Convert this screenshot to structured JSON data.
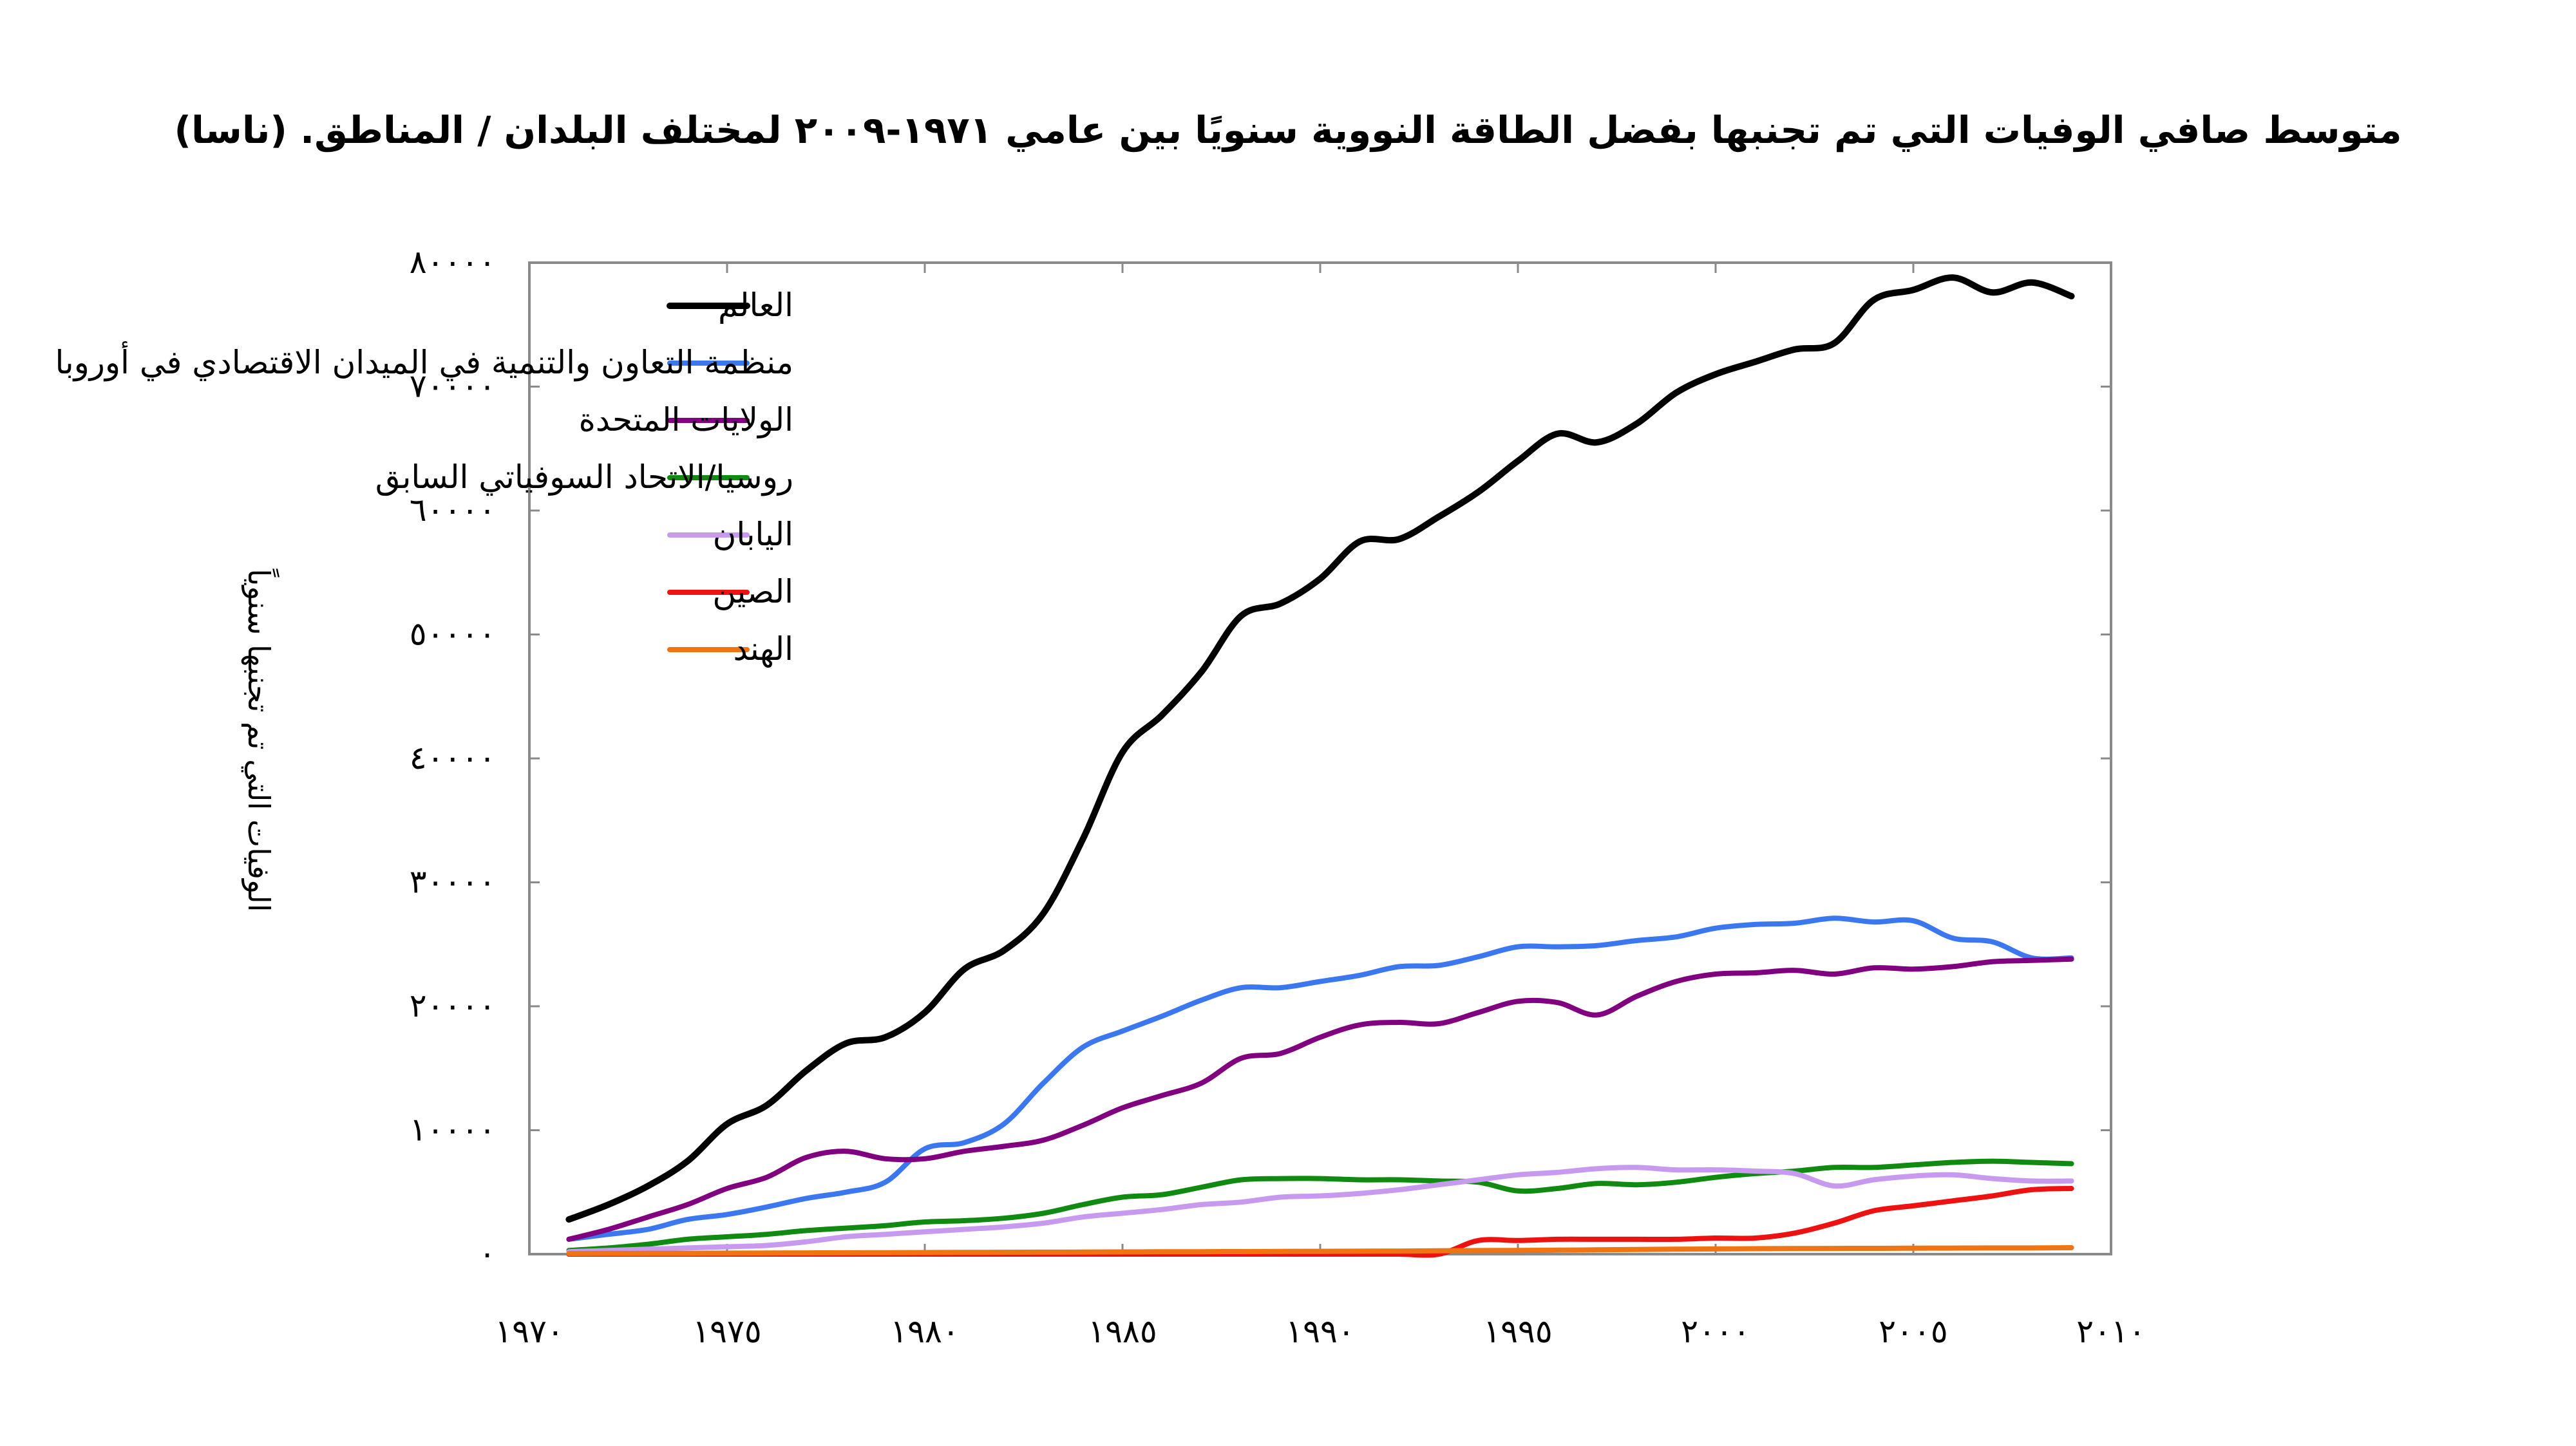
{
  "chart_data": {
    "type": "line",
    "title": "متوسط صافي الوفيات التي تم تجنبها بفضل الطاقة النووية سنويًا بين عامي ١٩٧١-٢٠٠٩ لمختلف البلدان / المناطق. (ناسا)",
    "xlabel": "",
    "ylabel": "الوفيات التي تم تجنبها سنوياً",
    "xlim": [
      1970,
      2010
    ],
    "ylim": [
      0,
      80000
    ],
    "x_ticks": [
      1970,
      1975,
      1980,
      1985,
      1990,
      1995,
      2000,
      2005,
      2010
    ],
    "x_tick_labels": [
      "١٩٧٠",
      "١٩٧٥",
      "١٩٨٠",
      "١٩٨٥",
      "١٩٩٠",
      "١٩٩٥",
      "٢٠٠٠",
      "٢٠٠٥",
      "٢٠١٠"
    ],
    "y_ticks": [
      0,
      10000,
      20000,
      30000,
      40000,
      50000,
      60000,
      70000,
      80000
    ],
    "y_tick_labels": [
      "٠",
      "١٠٠٠٠",
      "٢٠٠٠٠",
      "٣٠٠٠٠",
      "٤٠٠٠٠",
      "٥٠٠٠٠",
      "٦٠٠٠٠",
      "٧٠٠٠٠",
      "٨٠٠٠٠"
    ],
    "grid": false,
    "legend_position": "top-left",
    "x": [
      1971,
      1972,
      1973,
      1974,
      1975,
      1976,
      1977,
      1978,
      1979,
      1980,
      1981,
      1982,
      1983,
      1984,
      1985,
      1986,
      1987,
      1988,
      1989,
      1990,
      1991,
      1992,
      1993,
      1994,
      1995,
      1996,
      1997,
      1998,
      1999,
      2000,
      2001,
      2002,
      2003,
      2004,
      2005,
      2006,
      2007,
      2008,
      2009
    ],
    "series": [
      {
        "name": "العالم",
        "color": "#000000",
        "values": [
          2800,
          4000,
          5500,
          7500,
          10500,
          12000,
          14800,
          17000,
          17500,
          19500,
          23000,
          24500,
          27500,
          33500,
          40500,
          43500,
          47000,
          51500,
          52500,
          54500,
          57500,
          57700,
          59500,
          61500,
          64000,
          66200,
          65500,
          67000,
          69500,
          71000,
          72000,
          73000,
          73500,
          77000,
          77800,
          78800,
          77600,
          78400,
          77300
        ]
      },
      {
        "name": "منظمة التعاون والتنمية في الميدان الاقتصادي في أوروبا",
        "color": "#3b78f0",
        "values": [
          1200,
          1600,
          2000,
          2800,
          3200,
          3800,
          4500,
          5000,
          5800,
          8500,
          9000,
          10500,
          13800,
          16700,
          18000,
          19200,
          20500,
          21500,
          21500,
          22000,
          22500,
          23200,
          23300,
          24000,
          24800,
          24800,
          24900,
          25300,
          25600,
          26300,
          26600,
          26700,
          27100,
          26800,
          26900,
          25500,
          25200,
          23900,
          23900
        ]
      },
      {
        "name": "الولايات المتحدة",
        "color": "#800080",
        "values": [
          1200,
          2000,
          3000,
          4000,
          5300,
          6200,
          7800,
          8300,
          7700,
          7700,
          8300,
          8700,
          9200,
          10400,
          11800,
          12800,
          13800,
          15800,
          16200,
          17500,
          18500,
          18700,
          18600,
          19500,
          20400,
          20300,
          19300,
          20800,
          22000,
          22600,
          22700,
          22900,
          22600,
          23100,
          23000,
          23200,
          23600,
          23700,
          23800
        ]
      },
      {
        "name": "روسيا/الاتحاد السوفياتي السابق",
        "color": "#118a11",
        "values": [
          300,
          500,
          800,
          1200,
          1400,
          1600,
          1900,
          2100,
          2300,
          2600,
          2700,
          2900,
          3300,
          4000,
          4600,
          4800,
          5400,
          6000,
          6100,
          6100,
          6000,
          6000,
          5900,
          5800,
          5100,
          5300,
          5700,
          5600,
          5800,
          6200,
          6500,
          6700,
          7000,
          7000,
          7200,
          7400,
          7500,
          7400,
          7300
        ]
      },
      {
        "name": "اليابان",
        "color": "#c79af0",
        "values": [
          200,
          300,
          400,
          500,
          600,
          700,
          1000,
          1400,
          1600,
          1800,
          2000,
          2200,
          2500,
          3000,
          3300,
          3600,
          4000,
          4200,
          4600,
          4700,
          4900,
          5200,
          5600,
          6000,
          6400,
          6600,
          6900,
          7000,
          6800,
          6800,
          6700,
          6500,
          5500,
          6000,
          6300,
          6400,
          6100,
          5900,
          5900
        ]
      },
      {
        "name": "الصين",
        "color": "#ee1111",
        "values": [
          0,
          0,
          0,
          0,
          0,
          0,
          0,
          0,
          0,
          0,
          0,
          0,
          0,
          0,
          0,
          0,
          0,
          0,
          0,
          0,
          0,
          0,
          0,
          1100,
          1100,
          1200,
          1200,
          1200,
          1200,
          1300,
          1300,
          1700,
          2500,
          3500,
          3900,
          4300,
          4700,
          5200,
          5300
        ]
      },
      {
        "name": "الهند",
        "color": "#f07412",
        "values": [
          50,
          60,
          60,
          70,
          80,
          90,
          100,
          110,
          120,
          130,
          140,
          150,
          160,
          170,
          180,
          190,
          200,
          210,
          220,
          230,
          240,
          250,
          270,
          290,
          300,
          320,
          350,
          380,
          400,
          420,
          440,
          450,
          460,
          470,
          480,
          490,
          500,
          500,
          520
        ]
      }
    ]
  }
}
